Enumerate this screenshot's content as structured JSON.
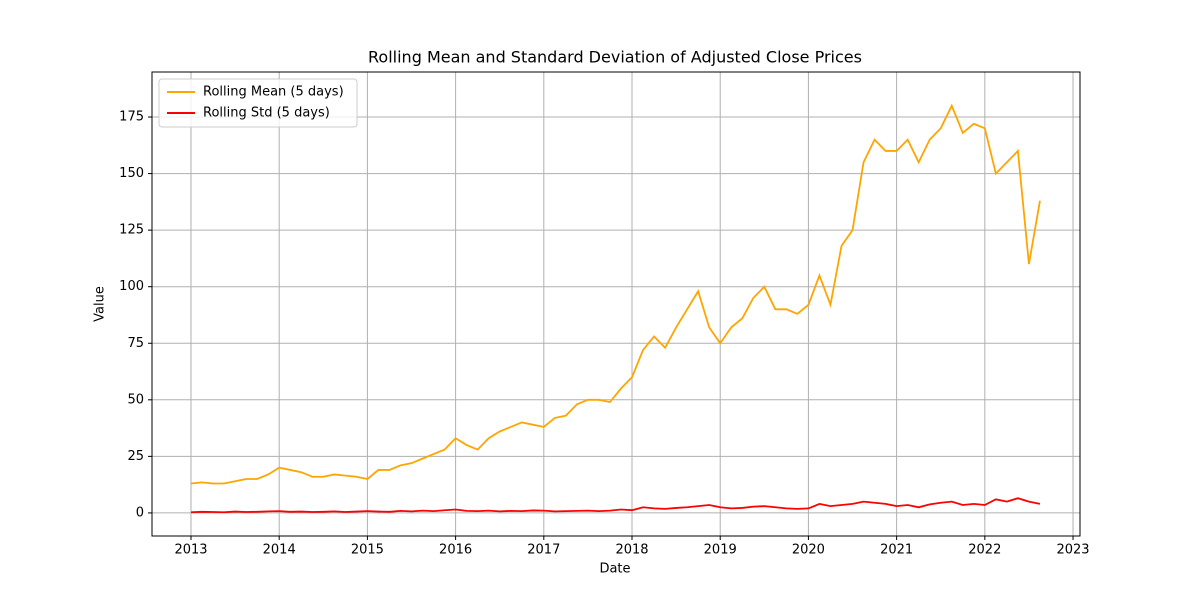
{
  "chart_data": {
    "type": "line",
    "title": "Rolling Mean and Standard Deviation of Adjusted Close Prices",
    "x_label": "Date",
    "y_label": "Value",
    "x": [
      2013.0,
      2013.125,
      2013.25,
      2013.375,
      2013.5,
      2013.625,
      2013.75,
      2013.875,
      2014.0,
      2014.125,
      2014.25,
      2014.375,
      2014.5,
      2014.625,
      2014.75,
      2014.875,
      2015.0,
      2015.125,
      2015.25,
      2015.375,
      2015.5,
      2015.625,
      2015.75,
      2015.875,
      2016.0,
      2016.125,
      2016.25,
      2016.375,
      2016.5,
      2016.625,
      2016.75,
      2016.875,
      2017.0,
      2017.125,
      2017.25,
      2017.375,
      2017.5,
      2017.625,
      2017.75,
      2017.875,
      2018.0,
      2018.125,
      2018.25,
      2018.375,
      2018.5,
      2018.625,
      2018.75,
      2018.875,
      2019.0,
      2019.125,
      2019.25,
      2019.375,
      2019.5,
      2019.625,
      2019.75,
      2019.875,
      2020.0,
      2020.125,
      2020.25,
      2020.375,
      2020.5,
      2020.625,
      2020.75,
      2020.875,
      2021.0,
      2021.125,
      2021.25,
      2021.375,
      2021.5,
      2021.625,
      2021.75,
      2021.875,
      2022.0,
      2022.125,
      2022.25,
      2022.375,
      2022.5,
      2022.625
    ],
    "series": [
      {
        "name": "Rolling Mean (5 days)",
        "color": "#ffa500",
        "values": [
          13,
          13.5,
          13,
          13,
          14,
          15,
          15,
          17,
          20,
          19,
          18,
          16,
          16,
          17,
          16.5,
          16,
          15,
          19,
          19,
          21,
          22,
          24,
          26,
          28,
          33,
          30,
          28,
          33,
          36,
          38,
          40,
          39,
          38,
          42,
          43,
          48,
          50,
          50,
          49,
          55,
          60,
          72,
          78,
          73,
          82,
          90,
          98,
          82,
          75,
          82,
          86,
          95,
          100,
          90,
          90,
          88,
          92,
          105,
          92,
          118,
          125,
          155,
          165,
          160,
          160,
          165,
          155,
          165,
          170,
          180,
          168,
          172,
          170,
          150,
          155,
          160,
          110,
          138
        ]
      },
      {
        "name": "Rolling Std (5 days)",
        "color": "#ff0000",
        "values": [
          0.3,
          0.5,
          0.4,
          0.3,
          0.6,
          0.4,
          0.5,
          0.7,
          0.8,
          0.5,
          0.6,
          0.4,
          0.5,
          0.7,
          0.4,
          0.6,
          0.8,
          0.6,
          0.5,
          0.9,
          0.7,
          1,
          0.8,
          1.2,
          1.5,
          0.9,
          0.8,
          1,
          0.7,
          0.9,
          0.8,
          1.1,
          1,
          0.7,
          0.8,
          0.9,
          1,
          0.8,
          1,
          1.5,
          1.2,
          2.5,
          2,
          1.8,
          2.2,
          2.5,
          3,
          3.5,
          2.5,
          2,
          2.2,
          2.8,
          3,
          2.5,
          2,
          1.8,
          2,
          4,
          3,
          3.5,
          4,
          5,
          4.5,
          4,
          3,
          3.5,
          2.5,
          3.8,
          4.5,
          5,
          3.5,
          4,
          3.5,
          6,
          5,
          6.5,
          5,
          4
        ]
      }
    ],
    "xlim": [
      2012.558,
      2023.079
    ],
    "ylim": [
      -10.2,
      194.9
    ],
    "xticks": [
      2013,
      2014,
      2015,
      2016,
      2017,
      2018,
      2019,
      2020,
      2021,
      2022,
      2023
    ],
    "yticks": [
      0,
      25,
      50,
      75,
      100,
      125,
      150,
      175
    ],
    "grid": true,
    "legend": "upper left"
  }
}
